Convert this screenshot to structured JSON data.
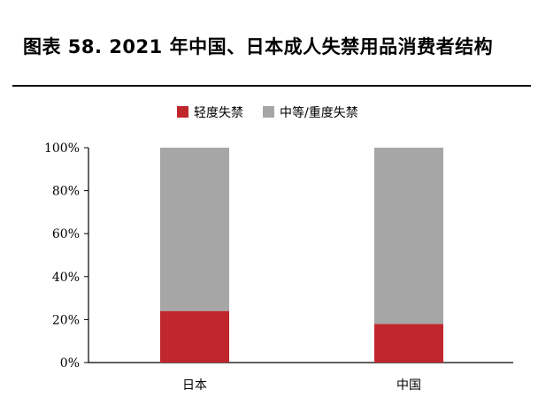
{
  "figure": {
    "title": "图表 58. 2021 年中国、日本成人失禁用品消费者结构"
  },
  "chart_data": {
    "type": "bar",
    "stacked": true,
    "categories": [
      "日本",
      "中国"
    ],
    "series": [
      {
        "name": "轻度失禁",
        "values": [
          24,
          18
        ],
        "color": "#c0272d"
      },
      {
        "name": "中等/重度失禁",
        "values": [
          76,
          82
        ],
        "color": "#a6a6a6"
      }
    ],
    "yticks": [
      "0%",
      "20%",
      "40%",
      "60%",
      "80%",
      "100%"
    ],
    "ylim": [
      0,
      100
    ],
    "legend_position": "top",
    "grid": false
  }
}
